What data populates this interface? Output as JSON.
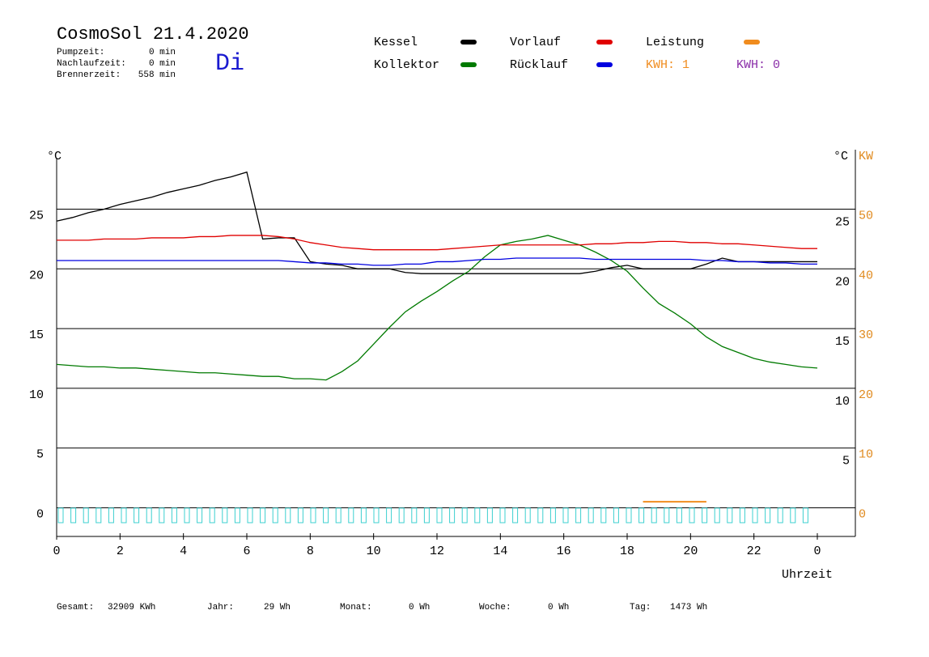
{
  "header": {
    "title": "CosmoSol 21.4.2020",
    "day": "Di",
    "times": [
      {
        "label": "Pumpzeit:",
        "value": "0 min"
      },
      {
        "label": "Nachlaufzeit:",
        "value": "0 min"
      },
      {
        "label": "Brennerzeit:",
        "value": "558 min"
      }
    ],
    "kwh": [
      {
        "text": "KWH: 1",
        "color": "#f08c1e"
      },
      {
        "text": "KWH: 0",
        "color": "#8a2da8"
      }
    ]
  },
  "chart_data": {
    "type": "line",
    "y_label": "°C",
    "y2_label_c": "°C",
    "y2_label": "KW",
    "x_label": "Uhrzeit",
    "x": [
      0,
      0.5,
      1,
      1.5,
      2,
      2.5,
      3,
      3.5,
      4,
      4.5,
      5,
      5.5,
      6,
      6.5,
      7,
      7.5,
      8,
      8.5,
      9,
      9.5,
      10,
      10.5,
      11,
      11.5,
      12,
      12.5,
      13,
      13.5,
      14,
      14.5,
      15,
      15.5,
      16,
      16.5,
      17,
      17.5,
      18,
      18.5,
      19,
      19.5,
      20,
      20.5,
      21,
      21.5,
      22,
      22.5,
      23,
      23.5,
      24
    ],
    "xlim": [
      0,
      25.2
    ],
    "xticks": [
      0,
      2,
      4,
      6,
      8,
      10,
      12,
      14,
      16,
      18,
      20,
      22,
      {
        "value": 24,
        "label": "0"
      }
    ],
    "ylim": [
      -2.4,
      29.3
    ],
    "yticks": [
      0,
      5,
      10,
      15,
      20,
      25
    ],
    "yticks_right": [
      5,
      10,
      15,
      20,
      25
    ],
    "y2lim": [
      -4.8,
      58.6
    ],
    "y2ticks": [
      0,
      10,
      20,
      30,
      40,
      50
    ],
    "grid": true,
    "series": [
      {
        "name": "Kessel",
        "color": "#000000",
        "values": [
          24.0,
          24.3,
          24.7,
          25.0,
          25.4,
          25.7,
          26.0,
          26.4,
          26.7,
          27.0,
          27.4,
          27.7,
          28.1,
          22.5,
          22.6,
          22.6,
          20.6,
          20.4,
          20.3,
          20.0,
          20.0,
          20.0,
          19.7,
          19.6,
          19.6,
          19.6,
          19.6,
          19.6,
          19.6,
          19.6,
          19.6,
          19.6,
          19.6,
          19.6,
          19.8,
          20.1,
          20.3,
          20.0,
          20.0,
          20.0,
          20.0,
          20.4,
          20.9,
          20.6,
          20.6,
          20.6,
          20.6,
          20.6,
          20.6
        ]
      },
      {
        "name": "Kollektor",
        "color": "#007a00",
        "values": [
          12.0,
          11.9,
          11.8,
          11.8,
          11.7,
          11.7,
          11.6,
          11.5,
          11.4,
          11.3,
          11.3,
          11.2,
          11.1,
          11.0,
          11.0,
          10.8,
          10.8,
          10.7,
          11.4,
          12.3,
          13.7,
          15.1,
          16.4,
          17.3,
          18.1,
          19.0,
          19.8,
          21.0,
          22.0,
          22.3,
          22.5,
          22.8,
          22.4,
          22.0,
          21.4,
          20.7,
          19.8,
          18.4,
          17.1,
          16.3,
          15.4,
          14.3,
          13.5,
          13.0,
          12.5,
          12.2,
          12.0,
          11.8,
          11.7
        ]
      },
      {
        "name": "Vorlauf",
        "color": "#e00000",
        "values": [
          22.4,
          22.4,
          22.4,
          22.5,
          22.5,
          22.5,
          22.6,
          22.6,
          22.6,
          22.7,
          22.7,
          22.8,
          22.8,
          22.8,
          22.7,
          22.5,
          22.2,
          22.0,
          21.8,
          21.7,
          21.6,
          21.6,
          21.6,
          21.6,
          21.6,
          21.7,
          21.8,
          21.9,
          22.0,
          22.0,
          22.0,
          22.0,
          22.0,
          22.0,
          22.1,
          22.1,
          22.2,
          22.2,
          22.3,
          22.3,
          22.2,
          22.2,
          22.1,
          22.1,
          22.0,
          21.9,
          21.8,
          21.7,
          21.7
        ]
      },
      {
        "name": "Rücklauf",
        "color": "#0000e0",
        "values": [
          20.7,
          20.7,
          20.7,
          20.7,
          20.7,
          20.7,
          20.7,
          20.7,
          20.7,
          20.7,
          20.7,
          20.7,
          20.7,
          20.7,
          20.7,
          20.6,
          20.5,
          20.5,
          20.4,
          20.4,
          20.3,
          20.3,
          20.4,
          20.4,
          20.6,
          20.6,
          20.7,
          20.8,
          20.8,
          20.9,
          20.9,
          20.9,
          20.9,
          20.9,
          20.8,
          20.8,
          20.8,
          20.8,
          20.8,
          20.8,
          20.8,
          20.7,
          20.7,
          20.6,
          20.6,
          20.5,
          20.5,
          20.4,
          20.4
        ]
      },
      {
        "name": "Leistung",
        "color": "#f08c1e",
        "axis": "y2",
        "values": [
          null,
          null,
          null,
          null,
          null,
          null,
          null,
          null,
          null,
          null,
          null,
          null,
          null,
          null,
          null,
          null,
          null,
          null,
          null,
          null,
          null,
          null,
          null,
          null,
          null,
          null,
          null,
          null,
          null,
          null,
          null,
          null,
          null,
          null,
          null,
          null,
          null,
          1,
          1,
          1,
          1,
          1,
          null,
          null,
          null,
          null,
          null,
          null,
          null
        ]
      }
    ]
  },
  "footer": [
    {
      "label": "Gesamt:",
      "value": "32909 KWh"
    },
    {
      "label": "Jahr:",
      "value": "29 Wh"
    },
    {
      "label": "Monat:",
      "value": "0 Wh"
    },
    {
      "label": "Woche:",
      "value": "0 Wh"
    },
    {
      "label": "Tag:",
      "value": "1473 Wh"
    }
  ]
}
